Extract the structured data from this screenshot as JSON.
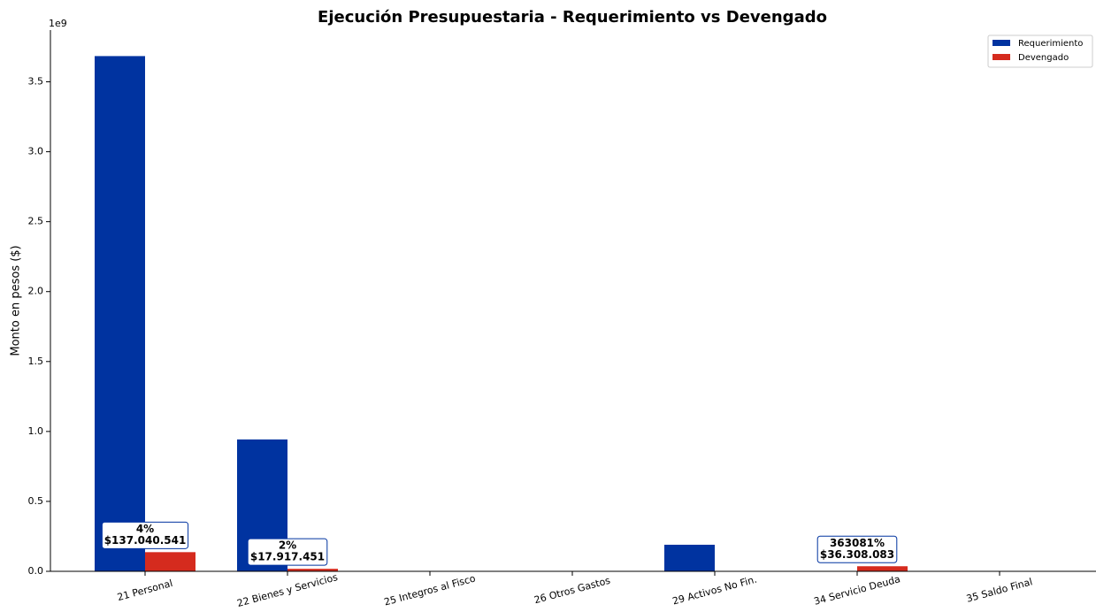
{
  "chart_data": {
    "type": "bar",
    "title": "Ejecución Presupuestaria - Requerimiento vs Devengado",
    "y_label": "Monto en pesos ($)",
    "y_offset_label": "1e9",
    "categories": [
      "21 Personal",
      "22 Bienes y Servicios",
      "25 Integros al Fisco",
      "26 Otros Gastos",
      "29 Activos No Fin.",
      "34 Servicio Deuda",
      "35 Saldo Final"
    ],
    "series": [
      {
        "name": "Requerimiento",
        "color": "#0033a0",
        "values": [
          3684000000,
          943000000,
          0,
          0,
          190000000,
          10000,
          0
        ]
      },
      {
        "name": "Devengado",
        "color": "#d52b1e",
        "values": [
          137040541,
          17917451,
          0,
          0,
          0,
          36308083,
          0
        ],
        "value_labels": [
          "$137.040.541",
          "$17.917.451",
          null,
          null,
          null,
          "$36.308.083",
          null
        ],
        "percent_labels": [
          "4%",
          "2%",
          null,
          null,
          null,
          "363081%",
          null
        ]
      }
    ],
    "ylim": [
      0,
      3870000000
    ],
    "yticks": [
      {
        "value": 0,
        "label": "0.0"
      },
      {
        "value": 500000000,
        "label": "0.5"
      },
      {
        "value": 1000000000,
        "label": "1.0"
      },
      {
        "value": 1500000000,
        "label": "1.5"
      },
      {
        "value": 2000000000,
        "label": "2.0"
      },
      {
        "value": 2500000000,
        "label": "2.5"
      },
      {
        "value": 3000000000,
        "label": "3.0"
      },
      {
        "value": 3500000000,
        "label": "3.5"
      }
    ],
    "legend": "upper right"
  }
}
